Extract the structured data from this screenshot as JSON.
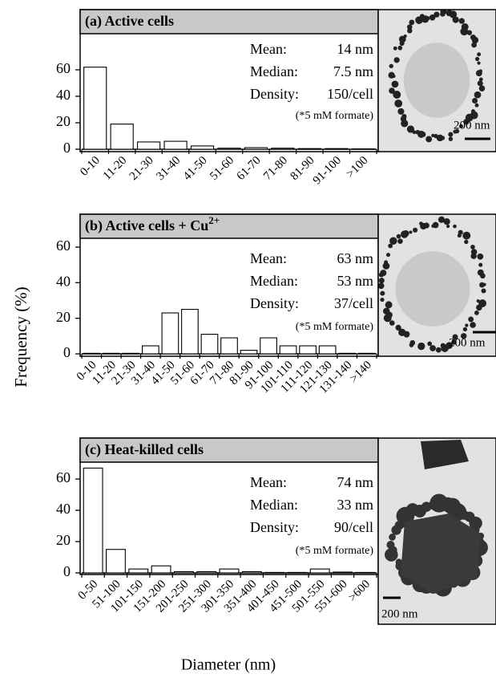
{
  "ylabel": "Frequency (%)",
  "xlabel": "Diameter (nm)",
  "chart_data": [
    {
      "type": "bar",
      "title": "(a) Active cells",
      "categories": [
        "0-10",
        "11-20",
        "21-30",
        "31-40",
        "41-50",
        "51-60",
        "61-70",
        "71-80",
        "81-90",
        "91-100",
        ">100"
      ],
      "values": [
        62,
        19,
        5.5,
        6,
        2.5,
        0.8,
        1.2,
        0.8,
        0.5,
        0.5,
        0.3
      ],
      "ylim": [
        0,
        75
      ],
      "yticks": [
        0,
        20,
        40,
        60
      ],
      "color": "#ffffff",
      "annotations": [
        {
          "label": "Mean:",
          "value": "14 nm"
        },
        {
          "label": "Median:",
          "value": "7.5 nm"
        },
        {
          "label": "Density:",
          "value": "150/cell"
        }
      ],
      "note": "(*5 mM formate)",
      "scale_bar": "200 nm"
    },
    {
      "type": "bar",
      "title": "(b) Active cells + Cu",
      "title_sup": "2+",
      "categories": [
        "0-10",
        "11-20",
        "21-30",
        "31-40",
        "41-50",
        "51-60",
        "61-70",
        "71-80",
        "81-90",
        "91-100",
        "101-110",
        "111-120",
        "121-130",
        "131-140",
        ">140"
      ],
      "values": [
        0.3,
        0.3,
        0.3,
        4.5,
        23,
        25,
        11,
        9,
        2,
        9,
        4.5,
        4.5,
        4.5,
        0.3,
        0.3
      ],
      "ylim": [
        0,
        75
      ],
      "yticks": [
        0,
        20,
        40,
        60
      ],
      "color": "#ffffff",
      "annotations": [
        {
          "label": "Mean:",
          "value": "63 nm"
        },
        {
          "label": "Median:",
          "value": "53 nm"
        },
        {
          "label": "Density:",
          "value": "37/cell"
        }
      ],
      "note": "(*5 mM formate)",
      "scale_bar": "200 nm"
    },
    {
      "type": "bar",
      "title": "(c) Heat-killed cells",
      "categories": [
        "0-50",
        "51-100",
        "101-150",
        "151-200",
        "201-250",
        "251-300",
        "301-350",
        "351-400",
        "401-450",
        "451-500",
        "501-550",
        "551-600",
        ">600"
      ],
      "values": [
        67,
        15,
        2.5,
        4.5,
        0.8,
        0.8,
        2.5,
        0.8,
        0.3,
        0.3,
        2.5,
        0.5,
        0.3
      ],
      "ylim": [
        0,
        75
      ],
      "yticks": [
        0,
        20,
        40,
        60
      ],
      "color": "#ffffff",
      "annotations": [
        {
          "label": "Mean:",
          "value": "74 nm"
        },
        {
          "label": "Median:",
          "value": "33 nm"
        },
        {
          "label": "Density:",
          "value": "90/cell"
        }
      ],
      "note": "(*5 mM formate)",
      "scale_bar": "200 nm"
    }
  ]
}
